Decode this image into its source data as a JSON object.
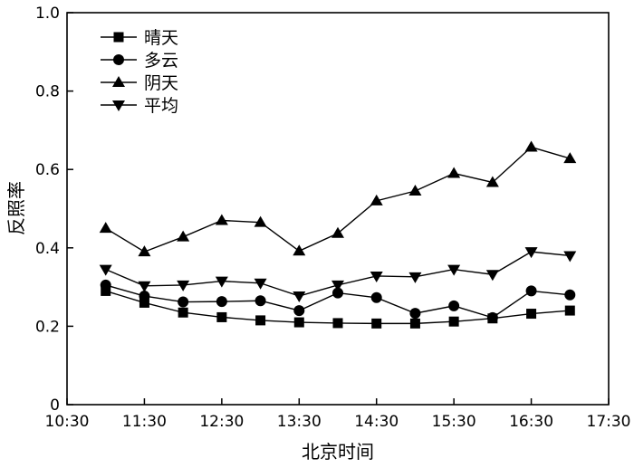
{
  "chart_data": {
    "type": "line",
    "xlabel": "北京时间",
    "ylabel": "反照率",
    "xlim": [
      "10:30",
      "17:30"
    ],
    "ylim": [
      0,
      1.0
    ],
    "x_ticks": [
      "10:30",
      "11:30",
      "12:30",
      "13:30",
      "14:30",
      "15:30",
      "16:30",
      "17:30"
    ],
    "y_ticks": [
      "0",
      "0.2",
      "0.4",
      "0.6",
      "0.8",
      "1.0"
    ],
    "x": [
      "11:00",
      "11:30",
      "12:00",
      "12:30",
      "13:00",
      "13:30",
      "14:00",
      "14:30",
      "15:00",
      "15:30",
      "16:00",
      "16:30",
      "17:00"
    ],
    "legend_position": "top-left",
    "grid": false,
    "series": [
      {
        "name": "晴天",
        "marker": "square",
        "values": [
          0.29,
          0.26,
          0.235,
          0.223,
          0.215,
          0.21,
          0.208,
          0.207,
          0.207,
          0.212,
          0.22,
          0.232,
          0.24
        ]
      },
      {
        "name": "多云",
        "marker": "circle",
        "values": [
          0.305,
          0.277,
          0.262,
          0.263,
          0.265,
          0.24,
          0.285,
          0.273,
          0.233,
          0.252,
          0.222,
          0.29,
          0.28
        ]
      },
      {
        "name": "阴天",
        "marker": "triangle-up",
        "values": [
          0.45,
          0.39,
          0.428,
          0.47,
          0.465,
          0.392,
          0.437,
          0.52,
          0.545,
          0.59,
          0.567,
          0.657,
          0.628
        ]
      },
      {
        "name": "平均",
        "marker": "triangle-down",
        "values": [
          0.345,
          0.303,
          0.305,
          0.315,
          0.31,
          0.277,
          0.305,
          0.328,
          0.326,
          0.345,
          0.332,
          0.39,
          0.38
        ]
      }
    ]
  }
}
